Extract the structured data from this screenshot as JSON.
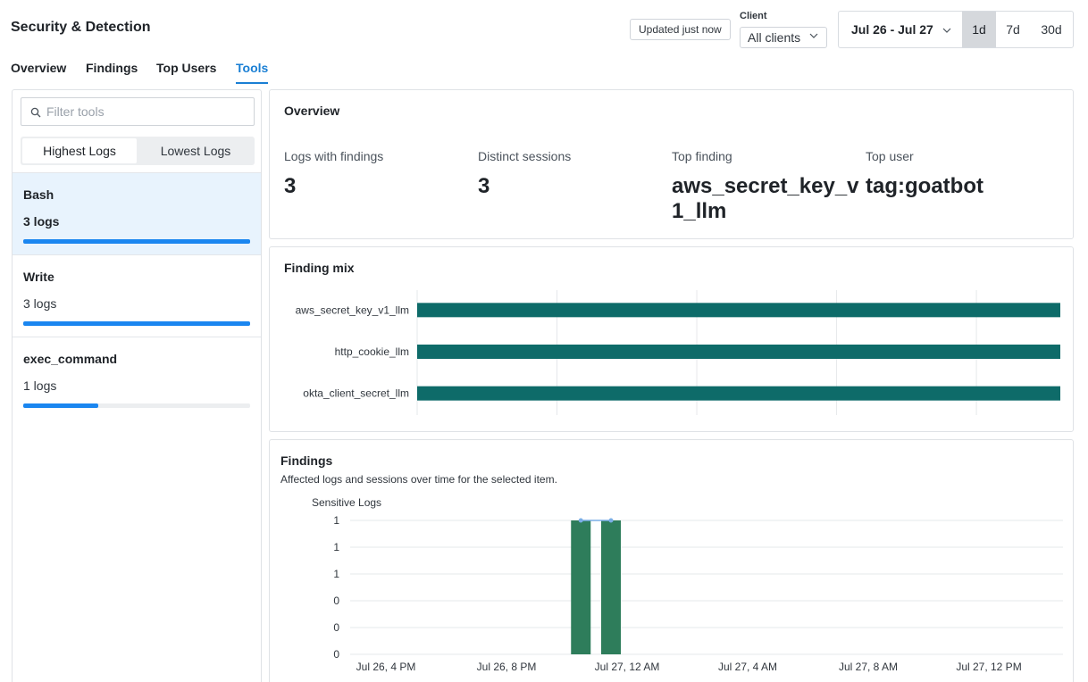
{
  "header": {
    "title": "Security & Detection",
    "updated": "Updated just now",
    "client_label": "Client",
    "client_value": "All clients",
    "date_range": "Jul 26 - Jul 27",
    "ranges": [
      "1d",
      "7d",
      "30d"
    ],
    "active_range": "1d"
  },
  "tabs": [
    {
      "label": "Overview",
      "active": false
    },
    {
      "label": "Findings",
      "active": false
    },
    {
      "label": "Top Users",
      "active": false
    },
    {
      "label": "Tools",
      "active": true
    }
  ],
  "sidebar": {
    "filter_placeholder": "Filter tools",
    "sort_options": [
      "Highest Logs",
      "Lowest Logs"
    ],
    "active_sort": "Highest Logs",
    "tools": [
      {
        "name": "Bash",
        "logs": "3 logs",
        "fraction": 1.0,
        "selected": true
      },
      {
        "name": "Write",
        "logs": "3 logs",
        "fraction": 1.0,
        "selected": false
      },
      {
        "name": "exec_command",
        "logs": "1 logs",
        "fraction": 0.33,
        "selected": false
      }
    ]
  },
  "overview": {
    "title": "Overview",
    "stats": [
      {
        "label": "Logs with findings",
        "value": "3"
      },
      {
        "label": "Distinct sessions",
        "value": "3"
      },
      {
        "label": "Top finding",
        "value": "aws_secret_key_v1_llm"
      },
      {
        "label": "Top user",
        "value": "tag:goatbot"
      }
    ]
  },
  "finding_mix": {
    "title": "Finding mix"
  },
  "findings": {
    "title": "Findings",
    "subtitle": "Affected logs and sessions over time for the selected item.",
    "series_label": "Sensitive Logs"
  },
  "colors": {
    "accent": "#1a7fd4",
    "progress": "#1a86f0",
    "mix_bar": "#0e6b69",
    "findings_bar": "#2e7d5b",
    "findings_line": "#7aaee6"
  },
  "chart_data": [
    {
      "type": "bar",
      "orientation": "horizontal",
      "title": "Finding mix",
      "categories": [
        "aws_secret_key_v1_llm",
        "http_cookie_llm",
        "okta_client_secret_llm"
      ],
      "values": [
        1,
        1,
        1
      ],
      "grid": true
    },
    {
      "type": "bar",
      "title": "Findings",
      "ylabel": "Sensitive Logs",
      "x_ticks": [
        "Jul 26, 4 PM",
        "Jul 26, 8 PM",
        "Jul 27, 12 AM",
        "Jul 27, 4 AM",
        "Jul 27, 8 AM",
        "Jul 27, 12 PM"
      ],
      "y_ticks": [
        "0",
        "0",
        "0",
        "1",
        "1",
        "1"
      ],
      "ylim": [
        0,
        1
      ],
      "series": [
        {
          "name": "Sensitive Logs",
          "x": [
            "Jul 26, 11 PM",
            "Jul 27, 12 AM"
          ],
          "values": [
            1,
            1
          ]
        }
      ],
      "grid": true
    }
  ]
}
